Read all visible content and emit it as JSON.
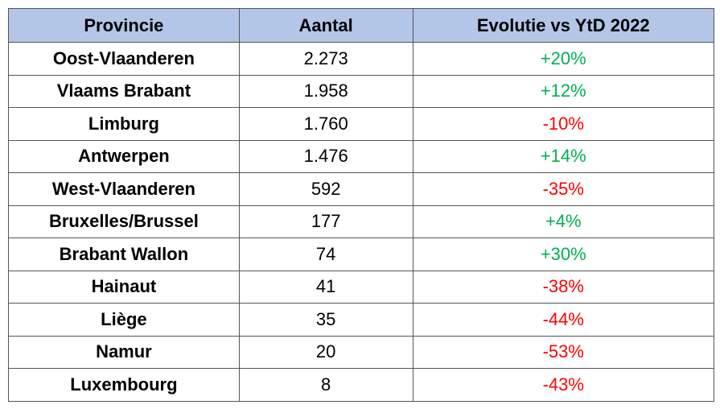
{
  "table": {
    "header": [
      "Provincie",
      "Aantal",
      "Evolutie vs YtD 2022"
    ],
    "rows": [
      [
        "Oost-Vlaanderen",
        "2.273",
        "+20%"
      ],
      [
        "Vlaams Brabant",
        "1.958",
        "+12%"
      ],
      [
        "Limburg",
        "1.760",
        "-10%"
      ],
      [
        "Antwerpen",
        "1.476",
        "+14%"
      ],
      [
        "West-Vlaanderen",
        "592",
        "-35%"
      ],
      [
        "Bruxelles/Brussel",
        "177",
        "+4%"
      ],
      [
        "Brabant Wallon",
        "74",
        "+30%"
      ],
      [
        "Hainaut",
        "41",
        "-38%"
      ],
      [
        "Liège",
        "35",
        "-44%"
      ],
      [
        "Namur",
        "20",
        "-53%"
      ],
      [
        "Luxembourg",
        "8",
        "-43%"
      ]
    ]
  }
}
